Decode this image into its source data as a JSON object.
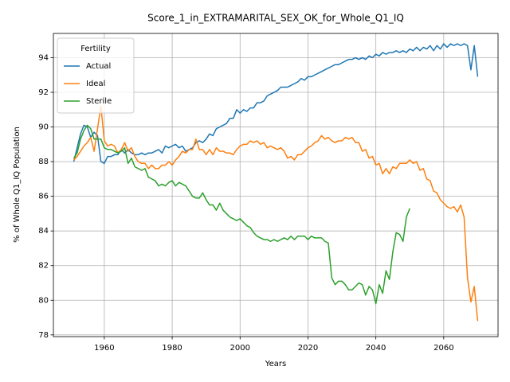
{
  "chart_data": {
    "type": "line",
    "title": "Score_1_in_EXTRAMARITAL_SEX_OK_for_Whole_Q1_IQ",
    "xlabel": "Years",
    "ylabel": "% of Whole Q1_IQ Population",
    "legend_title": "Fertility",
    "legend": "upper left",
    "grid": true,
    "xlim": [
      1945,
      2076
    ],
    "ylim": [
      77.9,
      95.4
    ],
    "xticks": [
      1960,
      1980,
      2000,
      2020,
      2040,
      2060
    ],
    "yticks": [
      78,
      80,
      82,
      84,
      86,
      88,
      90,
      92,
      94
    ],
    "x": [
      1951,
      1952,
      1953,
      1954,
      1955,
      1956,
      1957,
      1958,
      1959,
      1960,
      1961,
      1962,
      1963,
      1964,
      1965,
      1966,
      1967,
      1968,
      1969,
      1970,
      1971,
      1972,
      1973,
      1974,
      1975,
      1976,
      1977,
      1978,
      1979,
      1980,
      1981,
      1982,
      1983,
      1984,
      1985,
      1986,
      1987,
      1988,
      1989,
      1990,
      1991,
      1992,
      1993,
      1994,
      1995,
      1996,
      1997,
      1998,
      1999,
      2000,
      2001,
      2002,
      2003,
      2004,
      2005,
      2006,
      2007,
      2008,
      2009,
      2010,
      2011,
      2012,
      2013,
      2014,
      2015,
      2016,
      2017,
      2018,
      2019,
      2020,
      2021,
      2022,
      2023,
      2024,
      2025,
      2026,
      2027,
      2028,
      2029,
      2030,
      2031,
      2032,
      2033,
      2034,
      2035,
      2036,
      2037,
      2038,
      2039,
      2040,
      2041,
      2042,
      2043,
      2044,
      2045,
      2046,
      2047,
      2048,
      2049,
      2050,
      2051,
      2052,
      2053,
      2054,
      2055,
      2056,
      2057,
      2058,
      2059,
      2060,
      2061,
      2062,
      2063,
      2064,
      2065,
      2066,
      2067,
      2068,
      2069,
      2070
    ],
    "series": [
      {
        "name": "Actual",
        "color": "#1f77b4",
        "values": [
          88.0,
          88.8,
          89.6,
          90.1,
          90.0,
          89.4,
          89.7,
          89.5,
          88.0,
          87.9,
          88.3,
          88.3,
          88.4,
          88.4,
          88.7,
          88.5,
          88.7,
          88.5,
          88.4,
          88.4,
          88.5,
          88.4,
          88.5,
          88.5,
          88.6,
          88.7,
          88.5,
          88.9,
          88.8,
          88.9,
          89.0,
          88.8,
          88.9,
          88.6,
          88.7,
          88.8,
          89.1,
          89.2,
          89.1,
          89.3,
          89.6,
          89.5,
          89.9,
          90.0,
          90.1,
          90.2,
          90.5,
          90.5,
          91.0,
          90.8,
          91.0,
          90.9,
          91.1,
          91.1,
          91.4,
          91.4,
          91.5,
          91.8,
          91.9,
          92.0,
          92.1,
          92.3,
          92.3,
          92.3,
          92.4,
          92.5,
          92.6,
          92.8,
          92.7,
          92.9,
          92.9,
          93.0,
          93.1,
          93.2,
          93.3,
          93.4,
          93.5,
          93.6,
          93.6,
          93.7,
          93.8,
          93.9,
          93.9,
          94.0,
          93.9,
          94.0,
          93.9,
          94.1,
          94.0,
          94.2,
          94.1,
          94.3,
          94.2,
          94.3,
          94.3,
          94.4,
          94.3,
          94.4,
          94.3,
          94.5,
          94.4,
          94.6,
          94.4,
          94.6,
          94.5,
          94.7,
          94.4,
          94.7,
          94.5,
          94.8,
          94.6,
          94.8,
          94.7,
          94.8,
          94.7,
          94.8,
          94.7,
          93.3,
          94.7,
          92.9
        ]
      },
      {
        "name": "Ideal",
        "color": "#ff7f0e",
        "values": [
          88.1,
          88.3,
          88.6,
          88.9,
          89.1,
          89.4,
          88.6,
          89.9,
          91.2,
          89.2,
          88.9,
          89.0,
          88.9,
          88.5,
          88.7,
          89.1,
          88.6,
          88.8,
          88.3,
          88.0,
          87.9,
          87.9,
          87.6,
          87.8,
          87.6,
          87.6,
          87.8,
          87.8,
          88.0,
          87.8,
          88.1,
          88.3,
          88.6,
          88.5,
          88.7,
          88.7,
          89.3,
          88.7,
          88.7,
          88.4,
          88.7,
          88.4,
          88.8,
          88.6,
          88.6,
          88.5,
          88.5,
          88.4,
          88.7,
          88.9,
          89.0,
          89.0,
          89.2,
          89.1,
          89.2,
          89.0,
          89.1,
          88.8,
          88.9,
          88.8,
          88.7,
          88.8,
          88.6,
          88.2,
          88.3,
          88.1,
          88.4,
          88.4,
          88.6,
          88.8,
          88.9,
          89.1,
          89.2,
          89.5,
          89.3,
          89.4,
          89.2,
          89.1,
          89.2,
          89.2,
          89.4,
          89.3,
          89.4,
          89.1,
          89.1,
          88.6,
          88.7,
          88.2,
          88.3,
          87.8,
          87.9,
          87.3,
          87.6,
          87.3,
          87.7,
          87.6,
          87.9,
          87.9,
          87.9,
          88.1,
          87.9,
          88.0,
          87.5,
          87.6,
          87.0,
          86.9,
          86.3,
          86.2,
          85.8,
          85.6,
          85.4,
          85.3,
          85.4,
          85.1,
          85.5,
          84.8,
          81.3,
          79.9,
          80.8,
          78.8
        ]
      },
      {
        "name": "Sterile",
        "color": "#2ca02c",
        "values": [
          88.2,
          88.5,
          89.3,
          89.8,
          90.1,
          89.9,
          89.3,
          89.3,
          89.3,
          88.8,
          88.7,
          88.7,
          88.6,
          88.5,
          88.6,
          88.8,
          87.9,
          88.2,
          87.7,
          87.6,
          87.5,
          87.6,
          87.1,
          87.0,
          86.9,
          86.6,
          86.7,
          86.6,
          86.8,
          86.9,
          86.6,
          86.8,
          86.7,
          86.6,
          86.3,
          86.0,
          85.9,
          85.9,
          86.2,
          85.8,
          85.5,
          85.5,
          85.2,
          85.6,
          85.2,
          85.0,
          84.8,
          84.7,
          84.6,
          84.7,
          84.5,
          84.3,
          84.2,
          83.9,
          83.7,
          83.6,
          83.5,
          83.5,
          83.4,
          83.5,
          83.4,
          83.5,
          83.6,
          83.5,
          83.7,
          83.5,
          83.7,
          83.7,
          83.7,
          83.5,
          83.7,
          83.6,
          83.6,
          83.6,
          83.4,
          83.3,
          81.3,
          80.9,
          81.1,
          81.1,
          80.9,
          80.6,
          80.6,
          80.8,
          81.0,
          80.9,
          80.3,
          80.8,
          80.6,
          79.8,
          80.9,
          80.4,
          81.7,
          81.2,
          82.8,
          83.9,
          83.8,
          83.4,
          84.8,
          85.3,
          null,
          null,
          null,
          null,
          null,
          null,
          null,
          null,
          null,
          null,
          null,
          null,
          null,
          null,
          null,
          null,
          null,
          null,
          null,
          null
        ]
      }
    ]
  }
}
